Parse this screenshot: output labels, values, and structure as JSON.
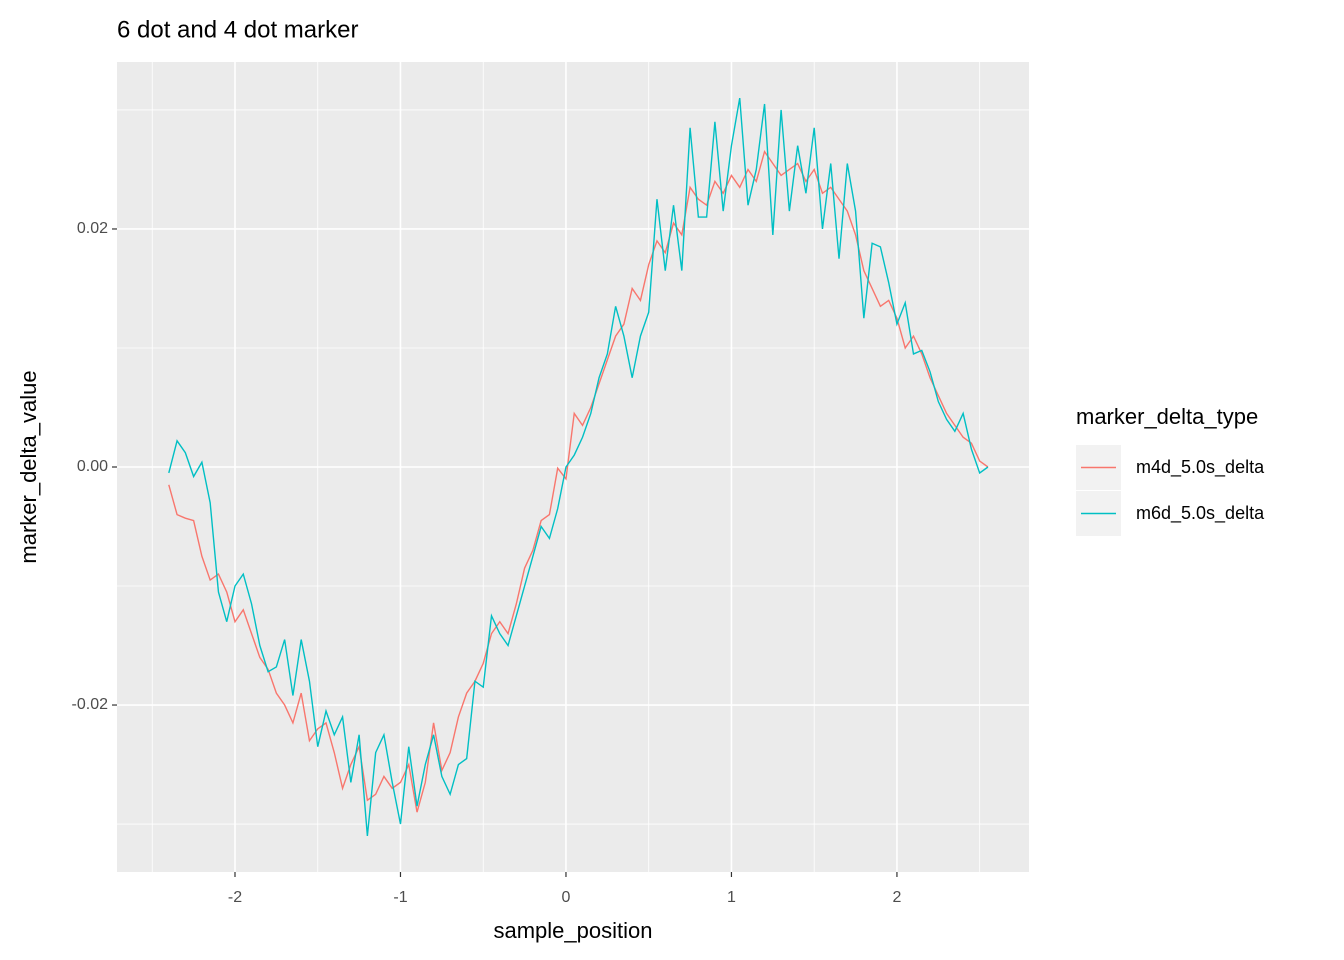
{
  "chart_data": {
    "type": "line",
    "title": "6 dot and 4 dot marker",
    "x_label": "sample_position",
    "y_label": "marker_delta_value",
    "legend_title": "marker_delta_type",
    "legend_position": "right",
    "grid": true,
    "xlim": [
      -2.713,
      2.798
    ],
    "ylim": [
      -0.03403,
      0.03403
    ],
    "xticks": [
      -2,
      -1,
      0,
      1,
      2
    ],
    "xminorticks": [
      -2.5,
      -1.5,
      -0.5,
      0.5,
      1.5,
      2.5
    ],
    "yticks": [
      {
        "value": -0.02,
        "label": "-0.02"
      },
      {
        "value": 0,
        "label": "0.00"
      },
      {
        "value": 0.02,
        "label": "0.02"
      }
    ],
    "yminorticks": [
      -0.03,
      -0.01,
      0.01,
      0.03
    ],
    "x": [
      -2.4,
      -2.35,
      -2.3,
      -2.25,
      -2.2,
      -2.15,
      -2.1,
      -2.05,
      -2.0,
      -1.95,
      -1.9,
      -1.85,
      -1.8,
      -1.75,
      -1.7,
      -1.65,
      -1.6,
      -1.55,
      -1.5,
      -1.45,
      -1.4,
      -1.35,
      -1.3,
      -1.25,
      -1.2,
      -1.15,
      -1.1,
      -1.05,
      -1.0,
      -0.95,
      -0.9,
      -0.85,
      -0.8,
      -0.75,
      -0.7,
      -0.65,
      -0.6,
      -0.55,
      -0.5,
      -0.45,
      -0.4,
      -0.35,
      -0.3,
      -0.25,
      -0.2,
      -0.15,
      -0.1,
      -0.05,
      0.0,
      0.05,
      0.1,
      0.15,
      0.2,
      0.25,
      0.3,
      0.35,
      0.4,
      0.45,
      0.5,
      0.55,
      0.6,
      0.65,
      0.7,
      0.75,
      0.8,
      0.85,
      0.9,
      0.95,
      1.0,
      1.05,
      1.1,
      1.15,
      1.2,
      1.25,
      1.3,
      1.35,
      1.4,
      1.45,
      1.5,
      1.55,
      1.6,
      1.65,
      1.7,
      1.75,
      1.8,
      1.85,
      1.9,
      1.95,
      2.0,
      2.05,
      2.1,
      2.15,
      2.2,
      2.25,
      2.3,
      2.35,
      2.4,
      2.45,
      2.5,
      2.55
    ],
    "series": [
      {
        "name": "m4d_5.0s_delta",
        "color": "#f8766d",
        "values": [
          -0.0015,
          -0.004,
          -0.0043,
          -0.0045,
          -0.0075,
          -0.0095,
          -0.009,
          -0.0105,
          -0.013,
          -0.012,
          -0.014,
          -0.016,
          -0.017,
          -0.019,
          -0.02,
          -0.0215,
          -0.019,
          -0.023,
          -0.022,
          -0.0215,
          -0.024,
          -0.027,
          -0.025,
          -0.0235,
          -0.028,
          -0.0275,
          -0.026,
          -0.027,
          -0.0265,
          -0.025,
          -0.029,
          -0.0265,
          -0.0215,
          -0.0255,
          -0.024,
          -0.021,
          -0.019,
          -0.018,
          -0.0165,
          -0.014,
          -0.013,
          -0.014,
          -0.0115,
          -0.0085,
          -0.007,
          -0.0045,
          -0.004,
          -0.0001,
          -0.001,
          0.0045,
          0.0035,
          0.005,
          0.007,
          0.009,
          0.011,
          0.012,
          0.015,
          0.014,
          0.017,
          0.019,
          0.018,
          0.0205,
          0.0195,
          0.0235,
          0.0225,
          0.022,
          0.024,
          0.023,
          0.0245,
          0.0235,
          0.025,
          0.024,
          0.0265,
          0.0255,
          0.0245,
          0.025,
          0.0255,
          0.024,
          0.025,
          0.023,
          0.0235,
          0.0225,
          0.0215,
          0.0195,
          0.0165,
          0.015,
          0.0135,
          0.014,
          0.0125,
          0.01,
          0.011,
          0.0095,
          0.0075,
          0.006,
          0.0045,
          0.0035,
          0.0025,
          0.002,
          0.0005,
          0.0
        ]
      },
      {
        "name": "m6d_5.0s_delta",
        "color": "#00bfc4",
        "values": [
          -0.0005,
          0.0022,
          0.0012,
          -0.0008,
          0.0004,
          -0.003,
          -0.0105,
          -0.013,
          -0.01,
          -0.009,
          -0.0115,
          -0.015,
          -0.0172,
          -0.0168,
          -0.0145,
          -0.0192,
          -0.0145,
          -0.018,
          -0.0235,
          -0.0205,
          -0.0225,
          -0.021,
          -0.0265,
          -0.0225,
          -0.031,
          -0.024,
          -0.0225,
          -0.0265,
          -0.03,
          -0.0235,
          -0.0285,
          -0.025,
          -0.0225,
          -0.026,
          -0.0275,
          -0.025,
          -0.0245,
          -0.018,
          -0.0185,
          -0.0125,
          -0.014,
          -0.015,
          -0.0125,
          -0.01,
          -0.0075,
          -0.005,
          -0.006,
          -0.0035,
          0.0,
          0.001,
          0.0025,
          0.0045,
          0.0075,
          0.0095,
          0.0135,
          0.011,
          0.0075,
          0.011,
          0.013,
          0.0225,
          0.0165,
          0.022,
          0.0165,
          0.0285,
          0.021,
          0.021,
          0.029,
          0.0215,
          0.027,
          0.031,
          0.022,
          0.025,
          0.0305,
          0.0195,
          0.03,
          0.0215,
          0.027,
          0.023,
          0.0285,
          0.02,
          0.0255,
          0.0175,
          0.0255,
          0.0215,
          0.0125,
          0.0188,
          0.0185,
          0.0155,
          0.012,
          0.0138,
          0.0095,
          0.0098,
          0.008,
          0.0055,
          0.004,
          0.003,
          0.0045,
          0.0015,
          -0.0005,
          0.0
        ]
      }
    ]
  }
}
